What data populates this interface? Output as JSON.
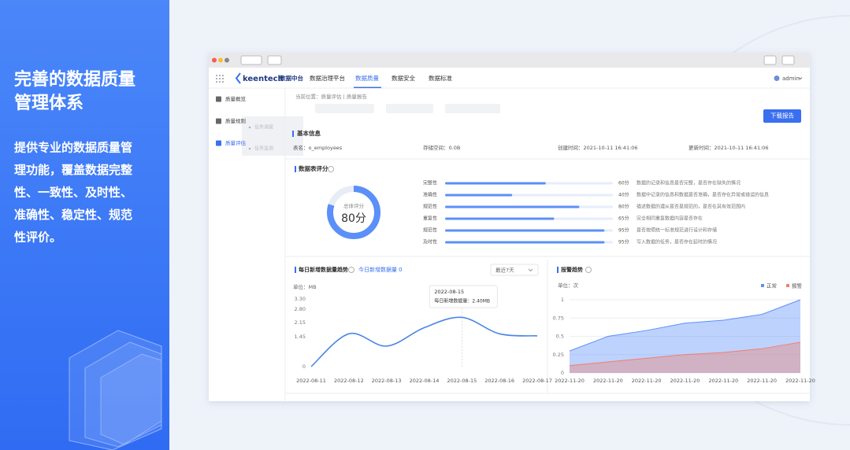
{
  "banner": {
    "title_lines": [
      "完善的数据质量",
      "管理体系"
    ],
    "description_lines": [
      "提供专业的数据质量管",
      "理功能，覆盖数据完整",
      "性、一致性、及时性、",
      "准确性、稳定性、规范",
      "性评价。"
    ]
  },
  "browser": {
    "nav": {
      "logo": "keentech",
      "product": "数据中台",
      "items": [
        "数据治理平台",
        "数据质量",
        "数据安全",
        "数据标准"
      ],
      "active": 1,
      "user": "admin"
    },
    "sidebar": {
      "items": [
        "质量概览",
        "质量规则",
        "质量评估"
      ],
      "active": 2,
      "popup": [
        "任务调度",
        "任务监测"
      ]
    },
    "breadcrumb": "当前位置：质量评估 | 质量报告",
    "download_button": "下载报告",
    "basic_info": {
      "title": "基本信息",
      "fields": [
        "表名：o_employees",
        "存储空间：0.0B",
        "创建时间：2021-10-11 16:41:06",
        "更新时间：2021-10-11 16:41:06"
      ]
    },
    "score": {
      "title": "数据表评分",
      "overall_label": "总体评分",
      "overall": {
        "value": 80,
        "label": "80分"
      },
      "xlim": [
        0,
        100
      ],
      "color": "#5b8ff9",
      "rows": [
        {
          "name": "完整性",
          "score": {
            "value": 60,
            "label": "60分"
          },
          "description": "数据的记录和信息是否完整，是否存在缺失的情况"
        },
        {
          "name": "准确性",
          "score": {
            "value": 40,
            "label": "40分"
          },
          "description": "数据中记录的信息和数据是否准确，是否存在异常或错误的信息"
        },
        {
          "name": "规范性",
          "score": {
            "value": 80,
            "label": "80分"
          },
          "description": "描述数据的遵从是否是规范的，是否在其有效范围内"
        },
        {
          "name": "重复性",
          "score": {
            "value": 65,
            "label": "65分"
          },
          "description": "完全相同重复数据内容是否存在"
        },
        {
          "name": "规范性",
          "score": {
            "value": 95,
            "label": "95分"
          },
          "description": "是否按照统一标准规范进行设计和存储"
        },
        {
          "name": "及时性",
          "score": {
            "value": 95,
            "label": "95分"
          },
          "description": "写入数据的任务，是否存在延时的情况"
        }
      ]
    },
    "line_chart": {
      "type": "line",
      "title": "每日新增数据量趋势",
      "today_label": "今日新增数据量",
      "today_value": 0,
      "range_select": "最近7天",
      "unit": "单位：MB",
      "categories": [
        "2022-08-11",
        "2022-08-12",
        "2022-08-13",
        "2022-08-14",
        "2022-08-15",
        "2022-08-16",
        "2022-08-17"
      ],
      "color": "#4a86e8",
      "values": [
        0,
        1.6,
        1.0,
        1.9,
        2.4,
        1.6,
        1.5
      ],
      "ylim": [
        0,
        3.3
      ],
      "yticks": [
        0,
        1.45,
        2.15,
        {
          "value": 2.8,
          "label": "2.80"
        },
        {
          "value": 3.3,
          "label": "3.30"
        }
      ],
      "grid": false,
      "tooltip": {
        "category": "2022-08-15",
        "text": "每日新增数据量：2.40MB"
      }
    },
    "area_chart": {
      "type": "area",
      "title": "报警趋势",
      "unit": "单位：次",
      "categories": [
        "2022-11-20",
        "2022-11-20",
        "2022-11-20",
        "2022-11-20",
        "2022-11-20",
        "2022-11-20",
        "2022-11-20"
      ],
      "series": [
        {
          "name": "正常",
          "color": "#5b8ff9",
          "values": [
            0.3,
            0.5,
            0.58,
            0.68,
            0.72,
            0.8,
            1.0
          ]
        },
        {
          "name": "报警",
          "color": "#f0806e",
          "values": [
            0.1,
            0.15,
            0.2,
            0.25,
            0.28,
            0.33,
            0.42
          ]
        }
      ],
      "ylim": [
        0,
        1
      ],
      "yticks": [
        0,
        0.25,
        0.5,
        0.75,
        1
      ],
      "grid": true,
      "legend": "top-right"
    }
  }
}
